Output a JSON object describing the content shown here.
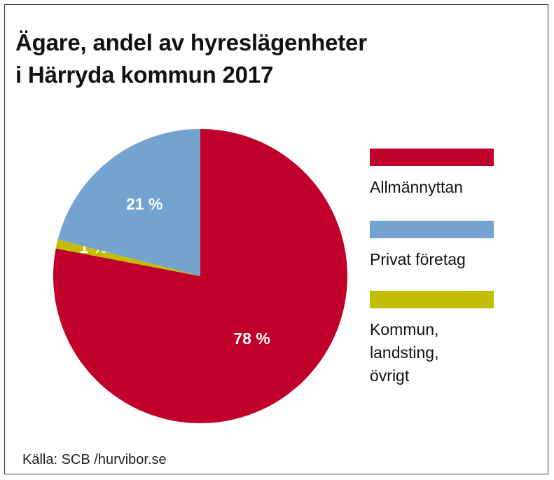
{
  "chart_data": {
    "type": "pie",
    "title_lines": [
      "Ägare, andel av hyreslägenheter",
      "i Härryda kommun 2017"
    ],
    "slices": [
      {
        "name": "Allmännyttan",
        "value": 78,
        "label": "78 %",
        "color": "#c0002b"
      },
      {
        "name": "Kommun, landsting, övrigt",
        "value": 1,
        "label": "1 %",
        "color": "#c2bd00"
      },
      {
        "name": "Privat företag",
        "value": 21,
        "label": "21 %",
        "color": "#74a3cf"
      }
    ],
    "legend": [
      {
        "lines": [
          "Allmännyttan"
        ],
        "color": "#c0002b"
      },
      {
        "lines": [
          "Privat företag"
        ],
        "color": "#74a3cf"
      },
      {
        "lines": [
          "Kommun,",
          "landsting,",
          "övrigt"
        ],
        "color": "#c2bd00"
      }
    ],
    "legend_placement": "right",
    "source": "Källa: SCB /hurvibor.se"
  }
}
